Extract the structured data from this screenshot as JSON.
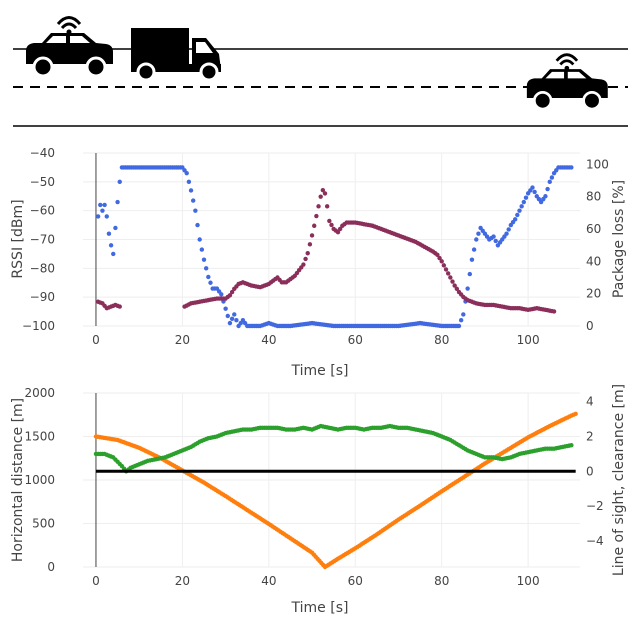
{
  "colors": {
    "rssi": "#4169e1",
    "package_loss": "#8b2e5a",
    "horizontal_distance": "#ff7f0e",
    "line_of_sight": "#2ca02c",
    "clearance": "#000000",
    "road": "#000000",
    "grid": "#eeeeee",
    "text": "#444444"
  },
  "icons": [
    "car-wifi-icon",
    "truck-icon",
    "car-wifi-icon"
  ],
  "chart_data": [
    {
      "type": "scatter",
      "xlabel": "Time [s]",
      "ylabel": "RSSI [dBm]",
      "y2label": "Package loss [%]",
      "xlim": [
        -3,
        112
      ],
      "ylim": [
        -100,
        -40
      ],
      "y2lim": [
        0,
        107
      ],
      "x_ticks": [
        0,
        20,
        40,
        60,
        80,
        100
      ],
      "y_ticks": [
        -40,
        -50,
        -60,
        -70,
        -80,
        -90,
        -100
      ],
      "y2_ticks": [
        0,
        20,
        40,
        60,
        80,
        100
      ],
      "grid": true,
      "series": [
        {
          "axis": "y",
          "key": "rssi",
          "segments": [
            [
              [
                0.5,
                -62
              ],
              [
                1,
                -58
              ],
              [
                1.5,
                -60
              ],
              [
                2,
                -58
              ],
              [
                2.5,
                -62
              ],
              [
                3,
                -68
              ],
              [
                3.5,
                -72
              ],
              [
                4,
                -75
              ],
              [
                4.5,
                -66
              ],
              [
                5,
                -57
              ],
              [
                5.5,
                -50
              ],
              [
                6,
                -45
              ],
              [
                10,
                -45
              ],
              [
                15,
                -45
              ],
              [
                20,
                -45
              ],
              [
                21,
                -47
              ],
              [
                22,
                -53
              ],
              [
                23,
                -60
              ],
              [
                24,
                -70
              ],
              [
                25,
                -77
              ],
              [
                26,
                -83
              ],
              [
                27,
                -87
              ],
              [
                28,
                -87
              ],
              [
                29,
                -89
              ],
              [
                30,
                -94
              ],
              [
                31,
                -99
              ],
              [
                32,
                -96
              ],
              [
                33,
                -100
              ],
              [
                34,
                -98
              ],
              [
                35,
                -100
              ],
              [
                38,
                -100
              ],
              [
                40,
                -99
              ],
              [
                42,
                -100
              ],
              [
                45,
                -100
              ],
              [
                50,
                -99
              ],
              [
                55,
                -100
              ],
              [
                60,
                -100
              ],
              [
                65,
                -100
              ],
              [
                70,
                -100
              ],
              [
                75,
                -99
              ],
              [
                80,
                -100
              ],
              [
                84,
                -100
              ],
              [
                85,
                -96
              ],
              [
                86,
                -87
              ],
              [
                87,
                -77
              ],
              [
                88,
                -70
              ],
              [
                89,
                -66
              ],
              [
                90,
                -68
              ],
              [
                91,
                -70
              ],
              [
                92,
                -69
              ],
              [
                93,
                -72
              ],
              [
                94,
                -70
              ],
              [
                95,
                -68
              ],
              [
                96,
                -65
              ],
              [
                97,
                -63
              ],
              [
                98,
                -60
              ],
              [
                99,
                -57
              ],
              [
                100,
                -54
              ],
              [
                101,
                -52
              ],
              [
                102,
                -55
              ],
              [
                103,
                -57
              ],
              [
                104,
                -55
              ],
              [
                105,
                -50
              ],
              [
                106,
                -47
              ],
              [
                107,
                -45
              ],
              [
                108,
                -45
              ],
              [
                110,
                -45
              ]
            ]
          ]
        },
        {
          "axis": "y2",
          "key": "package_loss",
          "segments": [
            [
              [
                0.5,
                15
              ],
              [
                1.5,
                14
              ],
              [
                2.5,
                11
              ],
              [
                3.5,
                12
              ],
              [
                4.5,
                13
              ],
              [
                5.5,
                12
              ]
            ],
            [
              [
                20.5,
                12
              ],
              [
                22,
                14
              ],
              [
                24,
                15
              ],
              [
                26,
                16
              ],
              [
                28,
                17
              ],
              [
                30,
                17
              ],
              [
                31,
                19
              ],
              [
                32,
                23
              ],
              [
                33,
                26
              ],
              [
                34,
                27
              ],
              [
                35,
                26
              ],
              [
                36,
                25
              ],
              [
                38,
                24
              ],
              [
                40,
                26
              ],
              [
                41,
                28
              ],
              [
                42,
                30
              ],
              [
                43,
                27
              ],
              [
                44,
                27
              ],
              [
                46,
                31
              ],
              [
                48,
                38
              ],
              [
                49,
                45
              ],
              [
                50,
                56
              ],
              [
                51,
                68
              ],
              [
                52,
                80
              ],
              [
                52.5,
                84
              ],
              [
                53,
                82
              ],
              [
                53.5,
                74
              ],
              [
                54,
                65
              ],
              [
                55,
                60
              ],
              [
                56,
                58
              ],
              [
                57,
                62
              ],
              [
                58,
                64
              ],
              [
                60,
                64
              ],
              [
                62,
                63
              ],
              [
                64,
                62
              ],
              [
                66,
                60
              ],
              [
                68,
                58
              ],
              [
                70,
                56
              ],
              [
                72,
                54
              ],
              [
                74,
                52
              ],
              [
                76,
                49
              ],
              [
                78,
                46
              ],
              [
                79,
                44
              ],
              [
                80,
                40
              ],
              [
                81,
                35
              ],
              [
                82,
                30
              ],
              [
                83,
                25
              ],
              [
                84,
                21
              ],
              [
                85,
                18
              ],
              [
                86,
                16
              ],
              [
                88,
                14
              ],
              [
                90,
                13
              ],
              [
                92,
                13
              ],
              [
                94,
                12
              ],
              [
                96,
                11
              ],
              [
                98,
                11
              ],
              [
                100,
                10
              ],
              [
                102,
                11
              ],
              [
                104,
                10
              ],
              [
                106,
                9
              ]
            ]
          ]
        }
      ]
    },
    {
      "type": "scatter",
      "xlabel": "Time [s]",
      "ylabel": "Horizontal distance [m]",
      "y2label": "Line of sight, clearance [m]",
      "xlim": [
        -3,
        112
      ],
      "ylim": [
        0,
        2000
      ],
      "y2lim": [
        -5.5,
        4.5
      ],
      "x_ticks": [
        0,
        20,
        40,
        60,
        80,
        100
      ],
      "y_ticks": [
        0,
        500,
        1000,
        1500,
        2000
      ],
      "y2_ticks": [
        -4,
        -2,
        0,
        2,
        4
      ],
      "grid": true,
      "series": [
        {
          "axis": "y",
          "key": "horizontal_distance",
          "segments": [
            [
              [
                0,
                1500
              ],
              [
                5,
                1460
              ],
              [
                10,
                1370
              ],
              [
                15,
                1250
              ],
              [
                20,
                1110
              ],
              [
                25,
                970
              ],
              [
                30,
                815
              ],
              [
                35,
                655
              ],
              [
                40,
                495
              ],
              [
                45,
                330
              ],
              [
                50,
                165
              ],
              [
                53,
                0
              ],
              [
                56,
                95
              ],
              [
                60,
                215
              ],
              [
                65,
                375
              ],
              [
                70,
                545
              ],
              [
                75,
                705
              ],
              [
                80,
                870
              ],
              [
                85,
                1030
              ],
              [
                90,
                1190
              ],
              [
                95,
                1340
              ],
              [
                100,
                1490
              ],
              [
                105,
                1620
              ],
              [
                110,
                1740
              ],
              [
                111,
                1760
              ]
            ]
          ]
        },
        {
          "axis": "y2",
          "key": "line_of_sight",
          "segments": [
            [
              [
                0,
                1
              ],
              [
                2,
                1
              ],
              [
                4,
                0.8
              ],
              [
                6,
                0.3
              ],
              [
                7,
                0
              ],
              [
                8,
                0.2
              ],
              [
                10,
                0.4
              ],
              [
                12,
                0.6
              ],
              [
                14,
                0.7
              ],
              [
                16,
                0.8
              ],
              [
                18,
                1
              ],
              [
                20,
                1.2
              ],
              [
                22,
                1.4
              ],
              [
                24,
                1.7
              ],
              [
                26,
                1.9
              ],
              [
                28,
                2
              ],
              [
                30,
                2.2
              ],
              [
                32,
                2.3
              ],
              [
                34,
                2.4
              ],
              [
                36,
                2.4
              ],
              [
                38,
                2.5
              ],
              [
                40,
                2.5
              ],
              [
                42,
                2.5
              ],
              [
                44,
                2.4
              ],
              [
                46,
                2.4
              ],
              [
                48,
                2.5
              ],
              [
                50,
                2.4
              ],
              [
                52,
                2.6
              ],
              [
                54,
                2.5
              ],
              [
                56,
                2.4
              ],
              [
                58,
                2.5
              ],
              [
                60,
                2.5
              ],
              [
                62,
                2.4
              ],
              [
                64,
                2.5
              ],
              [
                66,
                2.5
              ],
              [
                68,
                2.6
              ],
              [
                70,
                2.5
              ],
              [
                72,
                2.5
              ],
              [
                74,
                2.4
              ],
              [
                76,
                2.3
              ],
              [
                78,
                2.2
              ],
              [
                80,
                2
              ],
              [
                82,
                1.8
              ],
              [
                84,
                1.5
              ],
              [
                86,
                1.2
              ],
              [
                88,
                1
              ],
              [
                90,
                0.8
              ],
              [
                92,
                0.8
              ],
              [
                94,
                0.7
              ],
              [
                96,
                0.8
              ],
              [
                98,
                1
              ],
              [
                100,
                1.1
              ],
              [
                102,
                1.2
              ],
              [
                104,
                1.3
              ],
              [
                106,
                1.3
              ],
              [
                108,
                1.4
              ],
              [
                110,
                1.5
              ]
            ]
          ]
        },
        {
          "axis": "y2",
          "key": "clearance",
          "segments": [
            [
              [
                0,
                0
              ],
              [
                111,
                0
              ]
            ]
          ]
        }
      ]
    }
  ]
}
